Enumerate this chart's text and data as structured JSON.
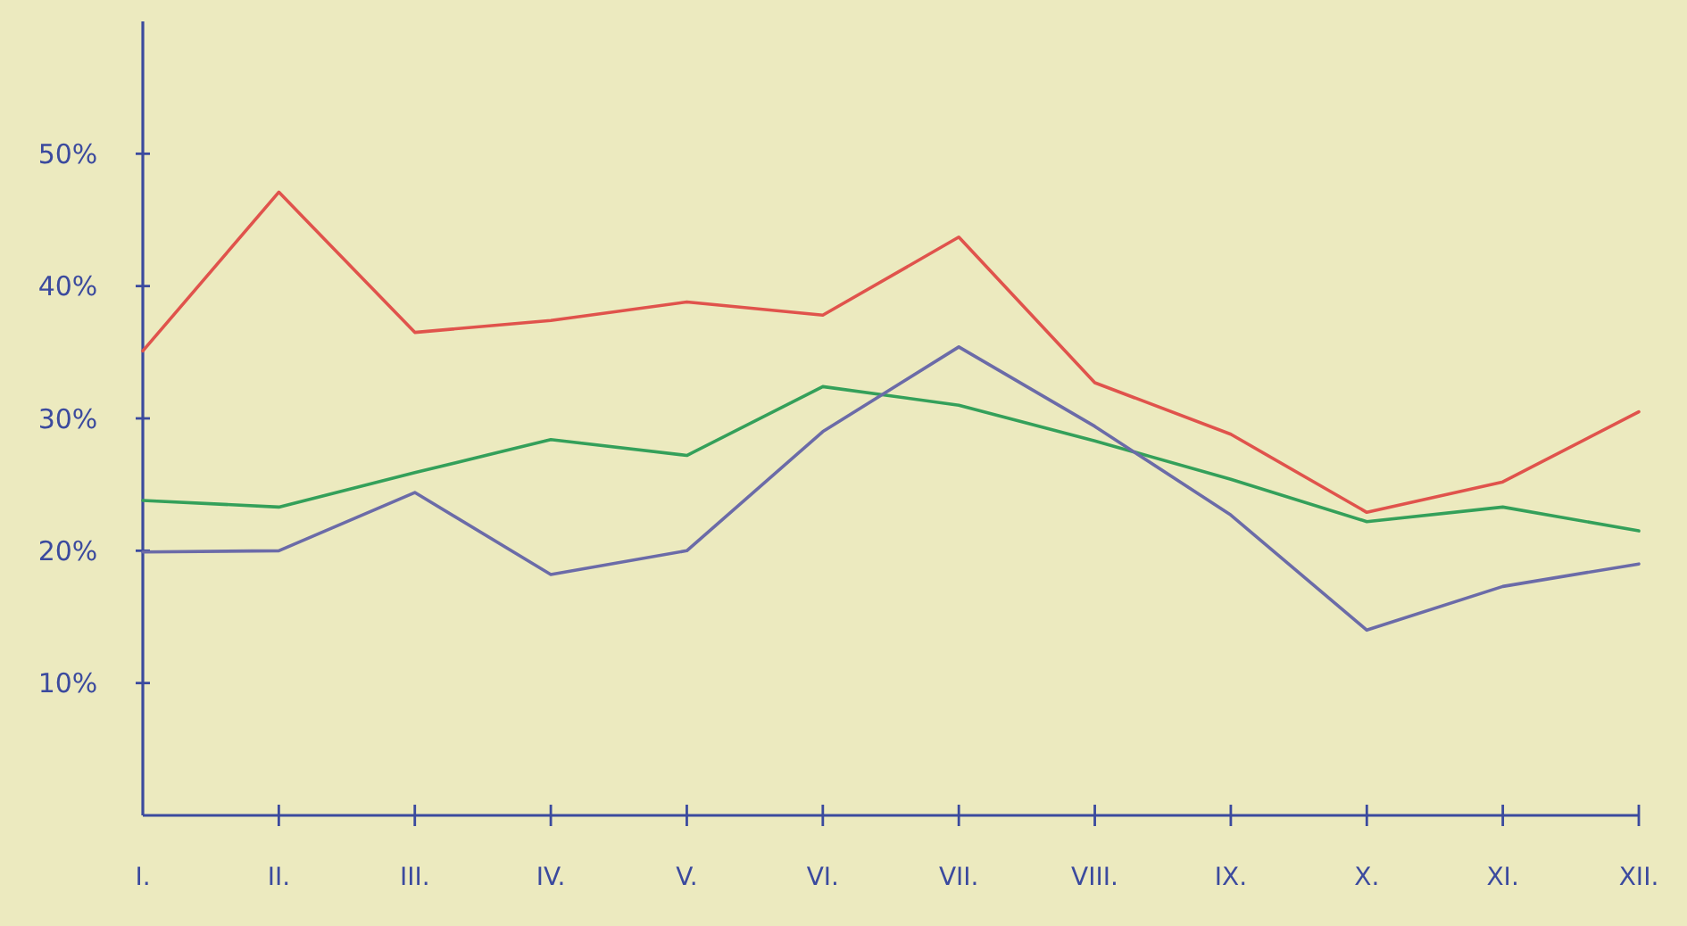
{
  "chart_data": {
    "type": "line",
    "categories": [
      "I.",
      "II.",
      "III.",
      "IV.",
      "V.",
      "VI.",
      "VII.",
      "VIII.",
      "IX.",
      "X.",
      "XI.",
      "XII."
    ],
    "ylim": [
      0,
      60
    ],
    "yticks": [
      {
        "value": 10,
        "label": "10%"
      },
      {
        "value": 20,
        "label": "20%"
      },
      {
        "value": 30,
        "label": "30%"
      },
      {
        "value": 40,
        "label": "40%"
      },
      {
        "value": 50,
        "label": "50%"
      }
    ],
    "grid": false,
    "marker": "none",
    "line_style": "solid",
    "series": [
      {
        "color": "#e0534c",
        "values": [
          35.1,
          47.1,
          36.5,
          37.4,
          38.8,
          37.8,
          43.7,
          32.7,
          28.8,
          22.9,
          25.2,
          30.5
        ]
      },
      {
        "color": "#34a05a",
        "values": [
          23.8,
          23.3,
          25.9,
          28.4,
          27.2,
          32.4,
          31.0,
          28.3,
          25.4,
          22.2,
          23.3,
          21.5
        ]
      },
      {
        "color": "#6b6ba8",
        "values": [
          19.9,
          20.0,
          24.4,
          18.2,
          20.0,
          29.0,
          35.4,
          29.4,
          22.7,
          14.0,
          17.3,
          19.0
        ]
      }
    ]
  }
}
